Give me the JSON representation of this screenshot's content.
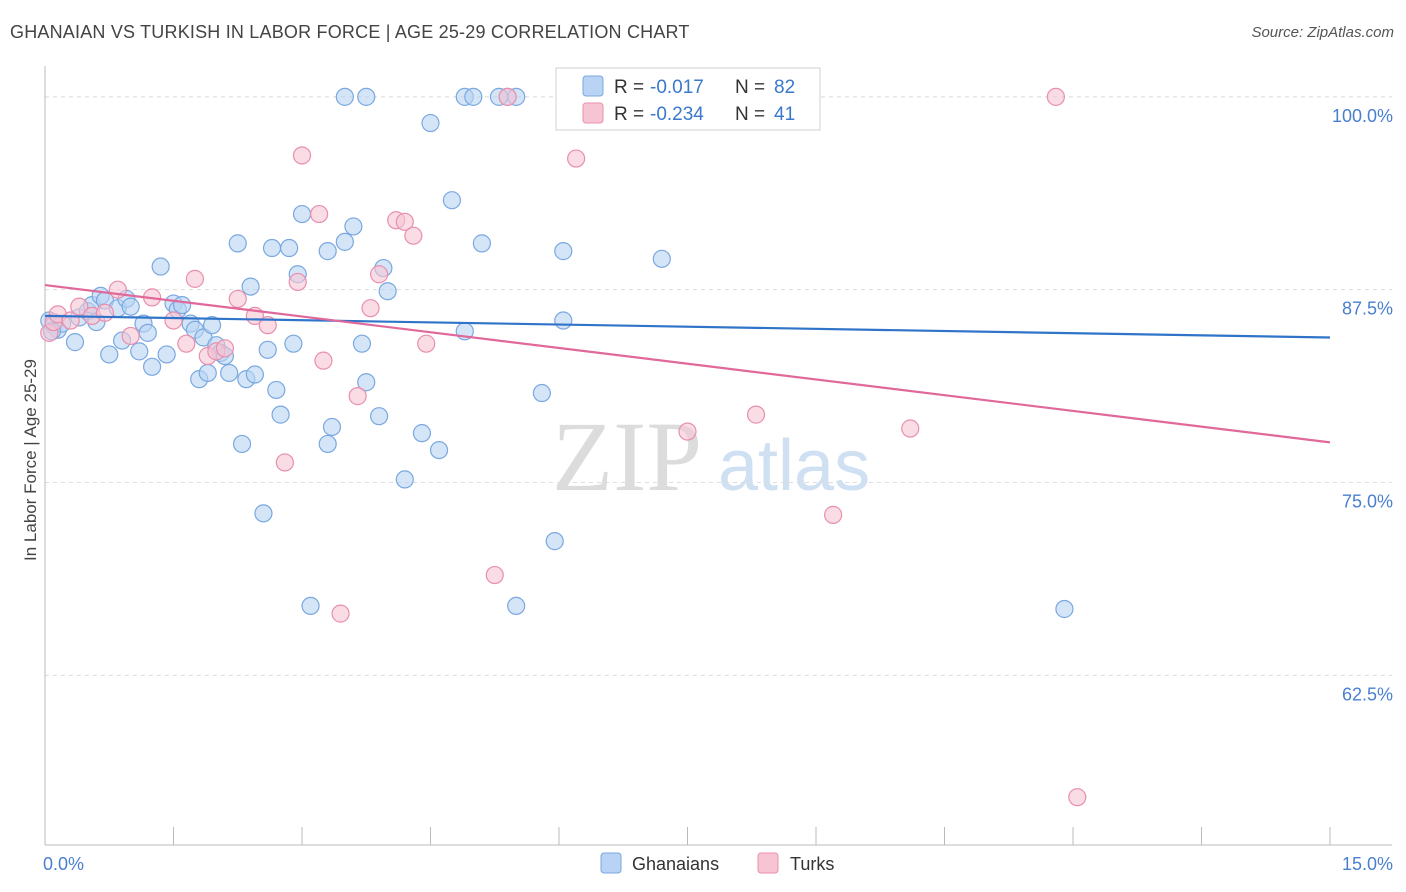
{
  "header": {
    "title": "GHANAIAN VS TURKISH IN LABOR FORCE | AGE 25-29 CORRELATION CHART",
    "source": "Source: ZipAtlas.com"
  },
  "watermark": {
    "zip": "ZIP",
    "atlas": "atlas"
  },
  "colors": {
    "blue_fill": "#b8d3f3",
    "blue_stroke": "#7aa8e0",
    "blue_line": "#2f74c8",
    "pink_fill": "#f7c4d4",
    "pink_stroke": "#e88fae",
    "pink_line": "#e0689a",
    "grid": "#dddddd",
    "tick_label": "#4a7fcf"
  },
  "legend": {
    "rows": [
      {
        "r_label": "R =",
        "r_value": "-0.017",
        "n_label": "N =",
        "n_value": "82"
      },
      {
        "r_label": "R =",
        "r_value": "-0.234",
        "n_label": "N =",
        "n_value": "41"
      }
    ]
  },
  "chart_data": {
    "type": "scatter",
    "title": "GHANAIAN VS TURKISH IN LABOR FORCE | AGE 25-29 CORRELATION CHART",
    "xlabel": "",
    "ylabel": "In Labor Force | Age 25-29",
    "xlim": [
      0,
      15
    ],
    "ylim": [
      51.5,
      102
    ],
    "x_tick_labels": [
      {
        "value": 0,
        "label": "0.0%"
      },
      {
        "value": 15,
        "label": "15.0%"
      }
    ],
    "y_ticks": [
      {
        "value": 100,
        "label": "100.0%"
      },
      {
        "value": 87.5,
        "label": "87.5%"
      },
      {
        "value": 75,
        "label": "75.0%"
      },
      {
        "value": 62.5,
        "label": "62.5%"
      }
    ],
    "grid": true,
    "legend_position": "top-center",
    "series": [
      {
        "name": "Ghanaians",
        "r": -0.017,
        "n": 82,
        "trend": {
          "x": [
            0,
            15
          ],
          "y": [
            85.8,
            84.4
          ]
        },
        "points": [
          [
            0.05,
            85.5
          ],
          [
            0.1,
            85.2
          ],
          [
            0.15,
            84.9
          ],
          [
            0.2,
            85.3
          ],
          [
            0.35,
            84.1
          ],
          [
            0.4,
            85.7
          ],
          [
            0.5,
            86.1
          ],
          [
            0.55,
            86.5
          ],
          [
            0.65,
            87.1
          ],
          [
            0.7,
            86.8
          ],
          [
            0.75,
            83.3
          ],
          [
            0.85,
            86.3
          ],
          [
            0.9,
            84.2
          ],
          [
            0.95,
            86.9
          ],
          [
            1.0,
            86.4
          ],
          [
            1.1,
            83.5
          ],
          [
            1.15,
            85.3
          ],
          [
            1.2,
            84.7
          ],
          [
            1.25,
            82.5
          ],
          [
            1.35,
            89.0
          ],
          [
            1.42,
            83.3
          ],
          [
            1.5,
            86.6
          ],
          [
            1.55,
            86.2
          ],
          [
            1.6,
            86.5
          ],
          [
            1.7,
            85.3
          ],
          [
            1.75,
            84.9
          ],
          [
            1.8,
            81.7
          ],
          [
            1.85,
            84.4
          ],
          [
            1.9,
            82.1
          ],
          [
            1.95,
            85.2
          ],
          [
            2.0,
            83.9
          ],
          [
            2.05,
            83.4
          ],
          [
            2.1,
            83.2
          ],
          [
            2.15,
            82.1
          ],
          [
            2.25,
            90.5
          ],
          [
            2.3,
            77.5
          ],
          [
            2.35,
            81.7
          ],
          [
            2.4,
            87.7
          ],
          [
            2.45,
            82.0
          ],
          [
            2.55,
            73.0
          ],
          [
            2.6,
            83.6
          ],
          [
            2.65,
            90.2
          ],
          [
            2.7,
            81.0
          ],
          [
            2.75,
            79.4
          ],
          [
            2.85,
            90.2
          ],
          [
            2.9,
            84.0
          ],
          [
            2.95,
            88.5
          ],
          [
            3.0,
            92.4
          ],
          [
            3.1,
            67.0
          ],
          [
            3.3,
            90.0
          ],
          [
            3.35,
            78.6
          ],
          [
            3.3,
            77.5
          ],
          [
            3.5,
            90.6
          ],
          [
            3.6,
            91.6
          ],
          [
            3.7,
            84.0
          ],
          [
            3.75,
            81.5
          ],
          [
            3.9,
            79.3
          ],
          [
            3.95,
            88.9
          ],
          [
            4.0,
            87.4
          ],
          [
            4.2,
            75.2
          ],
          [
            4.4,
            78.2
          ],
          [
            4.5,
            98.3
          ],
          [
            4.6,
            77.1
          ],
          [
            4.75,
            93.3
          ],
          [
            4.9,
            84.8
          ],
          [
            5.1,
            90.5
          ],
          [
            5.5,
            67.0
          ],
          [
            5.8,
            80.8
          ],
          [
            5.95,
            71.2
          ],
          [
            6.05,
            85.5
          ],
          [
            6.05,
            90.0
          ],
          [
            7.2,
            89.5
          ],
          [
            11.9,
            66.8
          ],
          [
            3.5,
            100
          ],
          [
            3.75,
            100
          ],
          [
            4.9,
            100
          ],
          [
            5.0,
            100
          ],
          [
            5.4,
            100
          ],
          [
            5.5,
            100
          ],
          [
            5.3,
            100
          ],
          [
            0.08,
            84.8
          ],
          [
            0.6,
            85.4
          ]
        ]
      },
      {
        "name": "Turks",
        "r": -0.234,
        "n": 41,
        "trend": {
          "x": [
            0,
            15
          ],
          "y": [
            87.8,
            77.6
          ]
        },
        "points": [
          [
            0.05,
            84.7
          ],
          [
            0.1,
            85.4
          ],
          [
            0.15,
            85.9
          ],
          [
            0.3,
            85.5
          ],
          [
            0.4,
            86.4
          ],
          [
            0.55,
            85.8
          ],
          [
            0.7,
            86.0
          ],
          [
            0.85,
            87.5
          ],
          [
            1.0,
            84.5
          ],
          [
            1.25,
            87.0
          ],
          [
            1.5,
            85.5
          ],
          [
            1.65,
            84.0
          ],
          [
            1.75,
            88.2
          ],
          [
            1.9,
            83.2
          ],
          [
            2.0,
            83.5
          ],
          [
            2.1,
            83.7
          ],
          [
            2.25,
            86.9
          ],
          [
            2.45,
            85.8
          ],
          [
            2.6,
            85.2
          ],
          [
            2.8,
            76.3
          ],
          [
            2.95,
            88.0
          ],
          [
            3.0,
            96.2
          ],
          [
            3.2,
            92.4
          ],
          [
            3.25,
            82.9
          ],
          [
            3.45,
            66.5
          ],
          [
            3.65,
            80.6
          ],
          [
            3.8,
            86.3
          ],
          [
            3.9,
            88.5
          ],
          [
            4.1,
            92.0
          ],
          [
            4.2,
            91.9
          ],
          [
            4.3,
            91.0
          ],
          [
            4.45,
            84.0
          ],
          [
            5.25,
            69.0
          ],
          [
            5.4,
            100
          ],
          [
            6.2,
            96.0
          ],
          [
            7.5,
            78.3
          ],
          [
            8.3,
            79.4
          ],
          [
            9.2,
            72.9
          ],
          [
            10.1,
            78.5
          ],
          [
            11.8,
            100
          ],
          [
            12.05,
            54.6
          ]
        ]
      }
    ]
  },
  "bottom_legend": {
    "items": [
      {
        "label": "Ghanaians"
      },
      {
        "label": "Turks"
      }
    ]
  }
}
